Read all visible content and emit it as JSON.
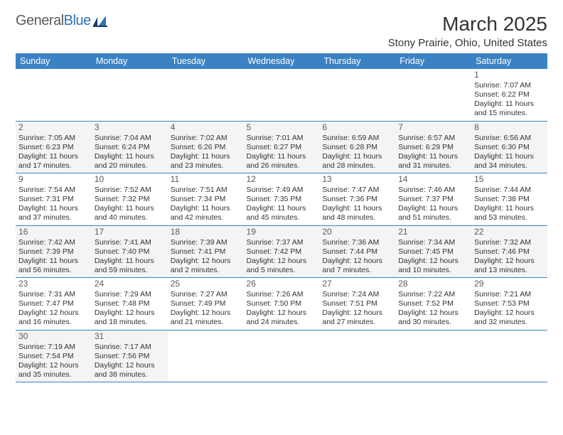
{
  "logo": {
    "text_general": "General",
    "text_blue": "Blue",
    "icon_fill": "#2b72b8",
    "text_color_general": "#5a5a5a",
    "text_color_blue": "#2b72b8"
  },
  "header": {
    "month_title": "March 2025",
    "location": "Stony Prairie, Ohio, United States",
    "title_fontsize_pt": 21,
    "location_fontsize_pt": 11
  },
  "theme": {
    "header_row_bg": "#3b82c4",
    "header_row_text": "#ffffff",
    "row_border_color": "#3b82c4",
    "row_alt_bg": "#f4f4f4",
    "text_color": "#333333",
    "body_fontsize_pt": 8,
    "daynum_color": "#5a5a5a"
  },
  "calendar": {
    "day_names": [
      "Sunday",
      "Monday",
      "Tuesday",
      "Wednesday",
      "Thursday",
      "Friday",
      "Saturday"
    ],
    "leading_blanks": 6,
    "days": [
      {
        "n": 1,
        "sunrise": "7:07 AM",
        "sunset": "6:22 PM",
        "daylight": "11 hours and 15 minutes."
      },
      {
        "n": 2,
        "sunrise": "7:05 AM",
        "sunset": "6:23 PM",
        "daylight": "11 hours and 17 minutes."
      },
      {
        "n": 3,
        "sunrise": "7:04 AM",
        "sunset": "6:24 PM",
        "daylight": "11 hours and 20 minutes."
      },
      {
        "n": 4,
        "sunrise": "7:02 AM",
        "sunset": "6:26 PM",
        "daylight": "11 hours and 23 minutes."
      },
      {
        "n": 5,
        "sunrise": "7:01 AM",
        "sunset": "6:27 PM",
        "daylight": "11 hours and 26 minutes."
      },
      {
        "n": 6,
        "sunrise": "6:59 AM",
        "sunset": "6:28 PM",
        "daylight": "11 hours and 28 minutes."
      },
      {
        "n": 7,
        "sunrise": "6:57 AM",
        "sunset": "6:29 PM",
        "daylight": "11 hours and 31 minutes."
      },
      {
        "n": 8,
        "sunrise": "6:56 AM",
        "sunset": "6:30 PM",
        "daylight": "11 hours and 34 minutes."
      },
      {
        "n": 9,
        "sunrise": "7:54 AM",
        "sunset": "7:31 PM",
        "daylight": "11 hours and 37 minutes."
      },
      {
        "n": 10,
        "sunrise": "7:52 AM",
        "sunset": "7:32 PM",
        "daylight": "11 hours and 40 minutes."
      },
      {
        "n": 11,
        "sunrise": "7:51 AM",
        "sunset": "7:34 PM",
        "daylight": "11 hours and 42 minutes."
      },
      {
        "n": 12,
        "sunrise": "7:49 AM",
        "sunset": "7:35 PM",
        "daylight": "11 hours and 45 minutes."
      },
      {
        "n": 13,
        "sunrise": "7:47 AM",
        "sunset": "7:36 PM",
        "daylight": "11 hours and 48 minutes."
      },
      {
        "n": 14,
        "sunrise": "7:46 AM",
        "sunset": "7:37 PM",
        "daylight": "11 hours and 51 minutes."
      },
      {
        "n": 15,
        "sunrise": "7:44 AM",
        "sunset": "7:38 PM",
        "daylight": "11 hours and 53 minutes."
      },
      {
        "n": 16,
        "sunrise": "7:42 AM",
        "sunset": "7:39 PM",
        "daylight": "11 hours and 56 minutes."
      },
      {
        "n": 17,
        "sunrise": "7:41 AM",
        "sunset": "7:40 PM",
        "daylight": "11 hours and 59 minutes."
      },
      {
        "n": 18,
        "sunrise": "7:39 AM",
        "sunset": "7:41 PM",
        "daylight": "12 hours and 2 minutes."
      },
      {
        "n": 19,
        "sunrise": "7:37 AM",
        "sunset": "7:42 PM",
        "daylight": "12 hours and 5 minutes."
      },
      {
        "n": 20,
        "sunrise": "7:36 AM",
        "sunset": "7:44 PM",
        "daylight": "12 hours and 7 minutes."
      },
      {
        "n": 21,
        "sunrise": "7:34 AM",
        "sunset": "7:45 PM",
        "daylight": "12 hours and 10 minutes."
      },
      {
        "n": 22,
        "sunrise": "7:32 AM",
        "sunset": "7:46 PM",
        "daylight": "12 hours and 13 minutes."
      },
      {
        "n": 23,
        "sunrise": "7:31 AM",
        "sunset": "7:47 PM",
        "daylight": "12 hours and 16 minutes."
      },
      {
        "n": 24,
        "sunrise": "7:29 AM",
        "sunset": "7:48 PM",
        "daylight": "12 hours and 18 minutes."
      },
      {
        "n": 25,
        "sunrise": "7:27 AM",
        "sunset": "7:49 PM",
        "daylight": "12 hours and 21 minutes."
      },
      {
        "n": 26,
        "sunrise": "7:26 AM",
        "sunset": "7:50 PM",
        "daylight": "12 hours and 24 minutes."
      },
      {
        "n": 27,
        "sunrise": "7:24 AM",
        "sunset": "7:51 PM",
        "daylight": "12 hours and 27 minutes."
      },
      {
        "n": 28,
        "sunrise": "7:22 AM",
        "sunset": "7:52 PM",
        "daylight": "12 hours and 30 minutes."
      },
      {
        "n": 29,
        "sunrise": "7:21 AM",
        "sunset": "7:53 PM",
        "daylight": "12 hours and 32 minutes."
      },
      {
        "n": 30,
        "sunrise": "7:19 AM",
        "sunset": "7:54 PM",
        "daylight": "12 hours and 35 minutes."
      },
      {
        "n": 31,
        "sunrise": "7:17 AM",
        "sunset": "7:56 PM",
        "daylight": "12 hours and 38 minutes."
      }
    ],
    "labels": {
      "sunrise_prefix": "Sunrise: ",
      "sunset_prefix": "Sunset: ",
      "daylight_prefix": "Daylight: "
    }
  }
}
